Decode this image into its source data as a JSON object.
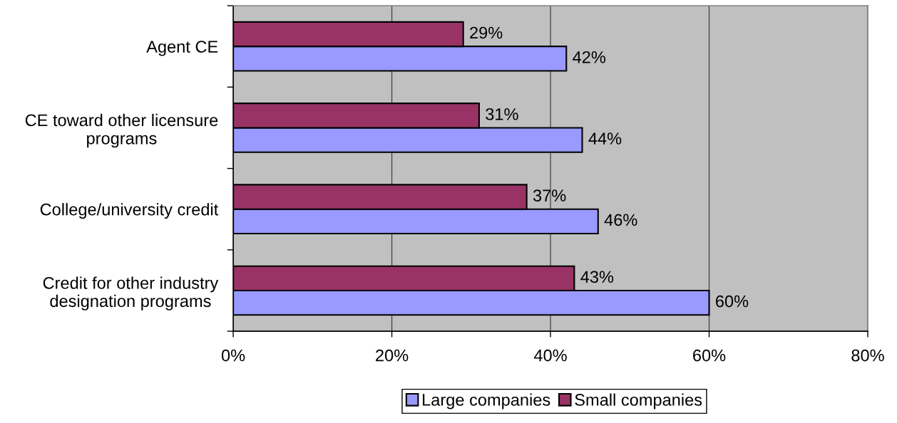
{
  "chart_data": {
    "type": "bar",
    "orientation": "horizontal",
    "categories": [
      "Agent CE",
      "CE toward other licensure\nprograms",
      "College/university credit",
      "Credit for other industry\ndesignation programs"
    ],
    "series": [
      {
        "name": "Large companies",
        "color": "#9999ff",
        "values": [
          42,
          44,
          46,
          60
        ],
        "value_labels": [
          "42%",
          "44%",
          "46%",
          "60%"
        ]
      },
      {
        "name": "Small companies",
        "color": "#993366",
        "values": [
          29,
          31,
          37,
          43
        ],
        "value_labels": [
          "29%",
          "31%",
          "37%",
          "43%"
        ]
      }
    ],
    "xlim": [
      0,
      80
    ],
    "xticks": [
      {
        "value": 0,
        "label": "0%"
      },
      {
        "value": 20,
        "label": "20%"
      },
      {
        "value": 40,
        "label": "40%"
      },
      {
        "value": 60,
        "label": "60%"
      },
      {
        "value": 80,
        "label": "80%"
      }
    ],
    "grid": "x",
    "legend": "bottom"
  }
}
